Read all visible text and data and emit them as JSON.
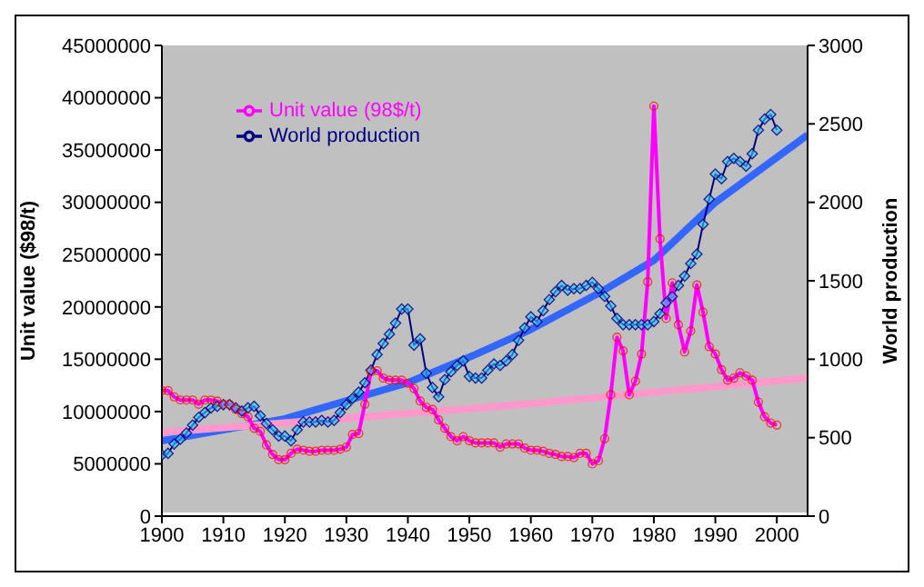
{
  "chart_data": {
    "type": "line",
    "xlabel": null,
    "ylabel": "Unit value ($98/t)",
    "y2label": "World production",
    "xlim": [
      1900,
      2005
    ],
    "xticks": [
      1900,
      1910,
      1920,
      1930,
      1940,
      1950,
      1960,
      1970,
      1980,
      1990,
      2000
    ],
    "ylim": [
      0,
      45000000
    ],
    "yticks": [
      0,
      5000000,
      10000000,
      15000000,
      20000000,
      25000000,
      30000000,
      35000000,
      40000000,
      45000000
    ],
    "y2lim": [
      0,
      3000
    ],
    "y2ticks": [
      0,
      500,
      1000,
      1500,
      2000,
      2500,
      3000
    ],
    "grid": false,
    "legend": "top left",
    "line_style": "solid",
    "series": [
      {
        "name": "Unit value (98$/t)",
        "color": "#ff00ff",
        "marker": "circle",
        "axis": "y",
        "x": [
          1900,
          1901,
          1902,
          1903,
          1904,
          1905,
          1906,
          1907,
          1908,
          1909,
          1910,
          1911,
          1912,
          1913,
          1914,
          1915,
          1916,
          1917,
          1918,
          1919,
          1920,
          1921,
          1922,
          1923,
          1924,
          1925,
          1926,
          1927,
          1928,
          1929,
          1930,
          1931,
          1932,
          1933,
          1934,
          1935,
          1936,
          1937,
          1938,
          1939,
          1940,
          1941,
          1942,
          1943,
          1944,
          1945,
          1946,
          1947,
          1948,
          1949,
          1950,
          1951,
          1952,
          1953,
          1954,
          1955,
          1956,
          1957,
          1958,
          1959,
          1960,
          1961,
          1962,
          1963,
          1964,
          1965,
          1966,
          1967,
          1968,
          1969,
          1970,
          1971,
          1972,
          1973,
          1974,
          1975,
          1976,
          1977,
          1978,
          1979,
          1980,
          1981,
          1982,
          1983,
          1984,
          1985,
          1986,
          1987,
          1988,
          1989,
          1990,
          1991,
          1992,
          1993,
          1994,
          1995,
          1996,
          1997,
          1998,
          1999,
          2000
        ],
        "values": [
          12000000,
          12000000,
          11400000,
          11100000,
          11100000,
          11100000,
          10700000,
          11100000,
          11100000,
          11000000,
          10700000,
          10700000,
          10200000,
          9800000,
          9500000,
          8400000,
          8100000,
          6800000,
          5900000,
          5400000,
          5400000,
          6000000,
          6400000,
          6300000,
          6200000,
          6200000,
          6300000,
          6300000,
          6300000,
          6400000,
          6600000,
          7800000,
          7900000,
          10700000,
          13800000,
          13900000,
          13200000,
          13000000,
          13000000,
          13000000,
          12700000,
          12200000,
          11000000,
          10400000,
          10200000,
          9200000,
          8400000,
          7600000,
          7200000,
          7600000,
          7200000,
          7000000,
          7000000,
          7000000,
          7000000,
          6600000,
          6900000,
          6900000,
          6900000,
          6500000,
          6300000,
          6300000,
          6200000,
          6000000,
          5900000,
          5700000,
          5700000,
          5600000,
          6000000,
          6000000,
          5000000,
          5300000,
          7400000,
          11600000,
          17100000,
          15800000,
          11600000,
          12900000,
          15500000,
          22400000,
          39200000,
          26500000,
          18900000,
          22300000,
          18300000,
          15700000,
          17700000,
          22100000,
          19500000,
          16200000,
          15500000,
          14000000,
          13000000,
          13200000,
          13700000,
          13400000,
          13000000,
          10900000,
          9500000,
          8900000,
          8700000
        ]
      },
      {
        "name": "World production",
        "color": "#000080",
        "marker": "diamond",
        "axis": "y2",
        "x": [
          1900,
          1901,
          1902,
          1903,
          1904,
          1905,
          1906,
          1907,
          1908,
          1909,
          1910,
          1911,
          1912,
          1913,
          1914,
          1915,
          1916,
          1917,
          1918,
          1919,
          1920,
          1921,
          1922,
          1923,
          1924,
          1925,
          1926,
          1927,
          1928,
          1929,
          1930,
          1931,
          1932,
          1933,
          1934,
          1935,
          1936,
          1937,
          1938,
          1939,
          1940,
          1941,
          1942,
          1943,
          1944,
          1945,
          1946,
          1947,
          1948,
          1949,
          1950,
          1951,
          1952,
          1953,
          1954,
          1955,
          1956,
          1957,
          1958,
          1959,
          1960,
          1961,
          1962,
          1963,
          1964,
          1965,
          1966,
          1967,
          1968,
          1969,
          1970,
          1971,
          1972,
          1973,
          1974,
          1975,
          1976,
          1977,
          1978,
          1979,
          1980,
          1981,
          1982,
          1983,
          1984,
          1985,
          1986,
          1987,
          1988,
          1989,
          1990,
          1991,
          1992,
          1993,
          1994,
          1995,
          1996,
          1997,
          1998,
          1999,
          2000
        ],
        "values": [
          390,
          400,
          460,
          490,
          530,
          580,
          630,
          660,
          690,
          700,
          710,
          710,
          690,
          670,
          690,
          700,
          640,
          590,
          550,
          510,
          510,
          480,
          550,
          600,
          600,
          600,
          610,
          600,
          610,
          660,
          710,
          750,
          790,
          850,
          930,
          1030,
          1100,
          1160,
          1230,
          1320,
          1320,
          1090,
          1130,
          910,
          820,
          760,
          870,
          920,
          960,
          990,
          890,
          880,
          880,
          930,
          970,
          960,
          990,
          1030,
          1120,
          1200,
          1270,
          1240,
          1310,
          1380,
          1430,
          1470,
          1440,
          1450,
          1450,
          1470,
          1490,
          1450,
          1400,
          1340,
          1260,
          1220,
          1220,
          1220,
          1220,
          1220,
          1240,
          1290,
          1360,
          1400,
          1470,
          1530,
          1610,
          1670,
          1860,
          2020,
          2180,
          2150,
          2260,
          2280,
          2260,
          2230,
          2310,
          2460,
          2530,
          2560,
          2460
        ]
      },
      {
        "color": "#ff99cc",
        "marker": "none",
        "axis": "y",
        "x": [
          1900,
          1957,
          2005
        ],
        "values": [
          8000000,
          10600000,
          13200000
        ]
      },
      {
        "color": "#3366ff",
        "marker": "none",
        "axis": "y2",
        "x": [
          1900,
          1920,
          1940,
          1951,
          1960,
          1971,
          1980,
          1990,
          2005
        ],
        "values": [
          480,
          620,
          850,
          1030,
          1190,
          1420,
          1630,
          2000,
          2430
        ]
      }
    ]
  }
}
